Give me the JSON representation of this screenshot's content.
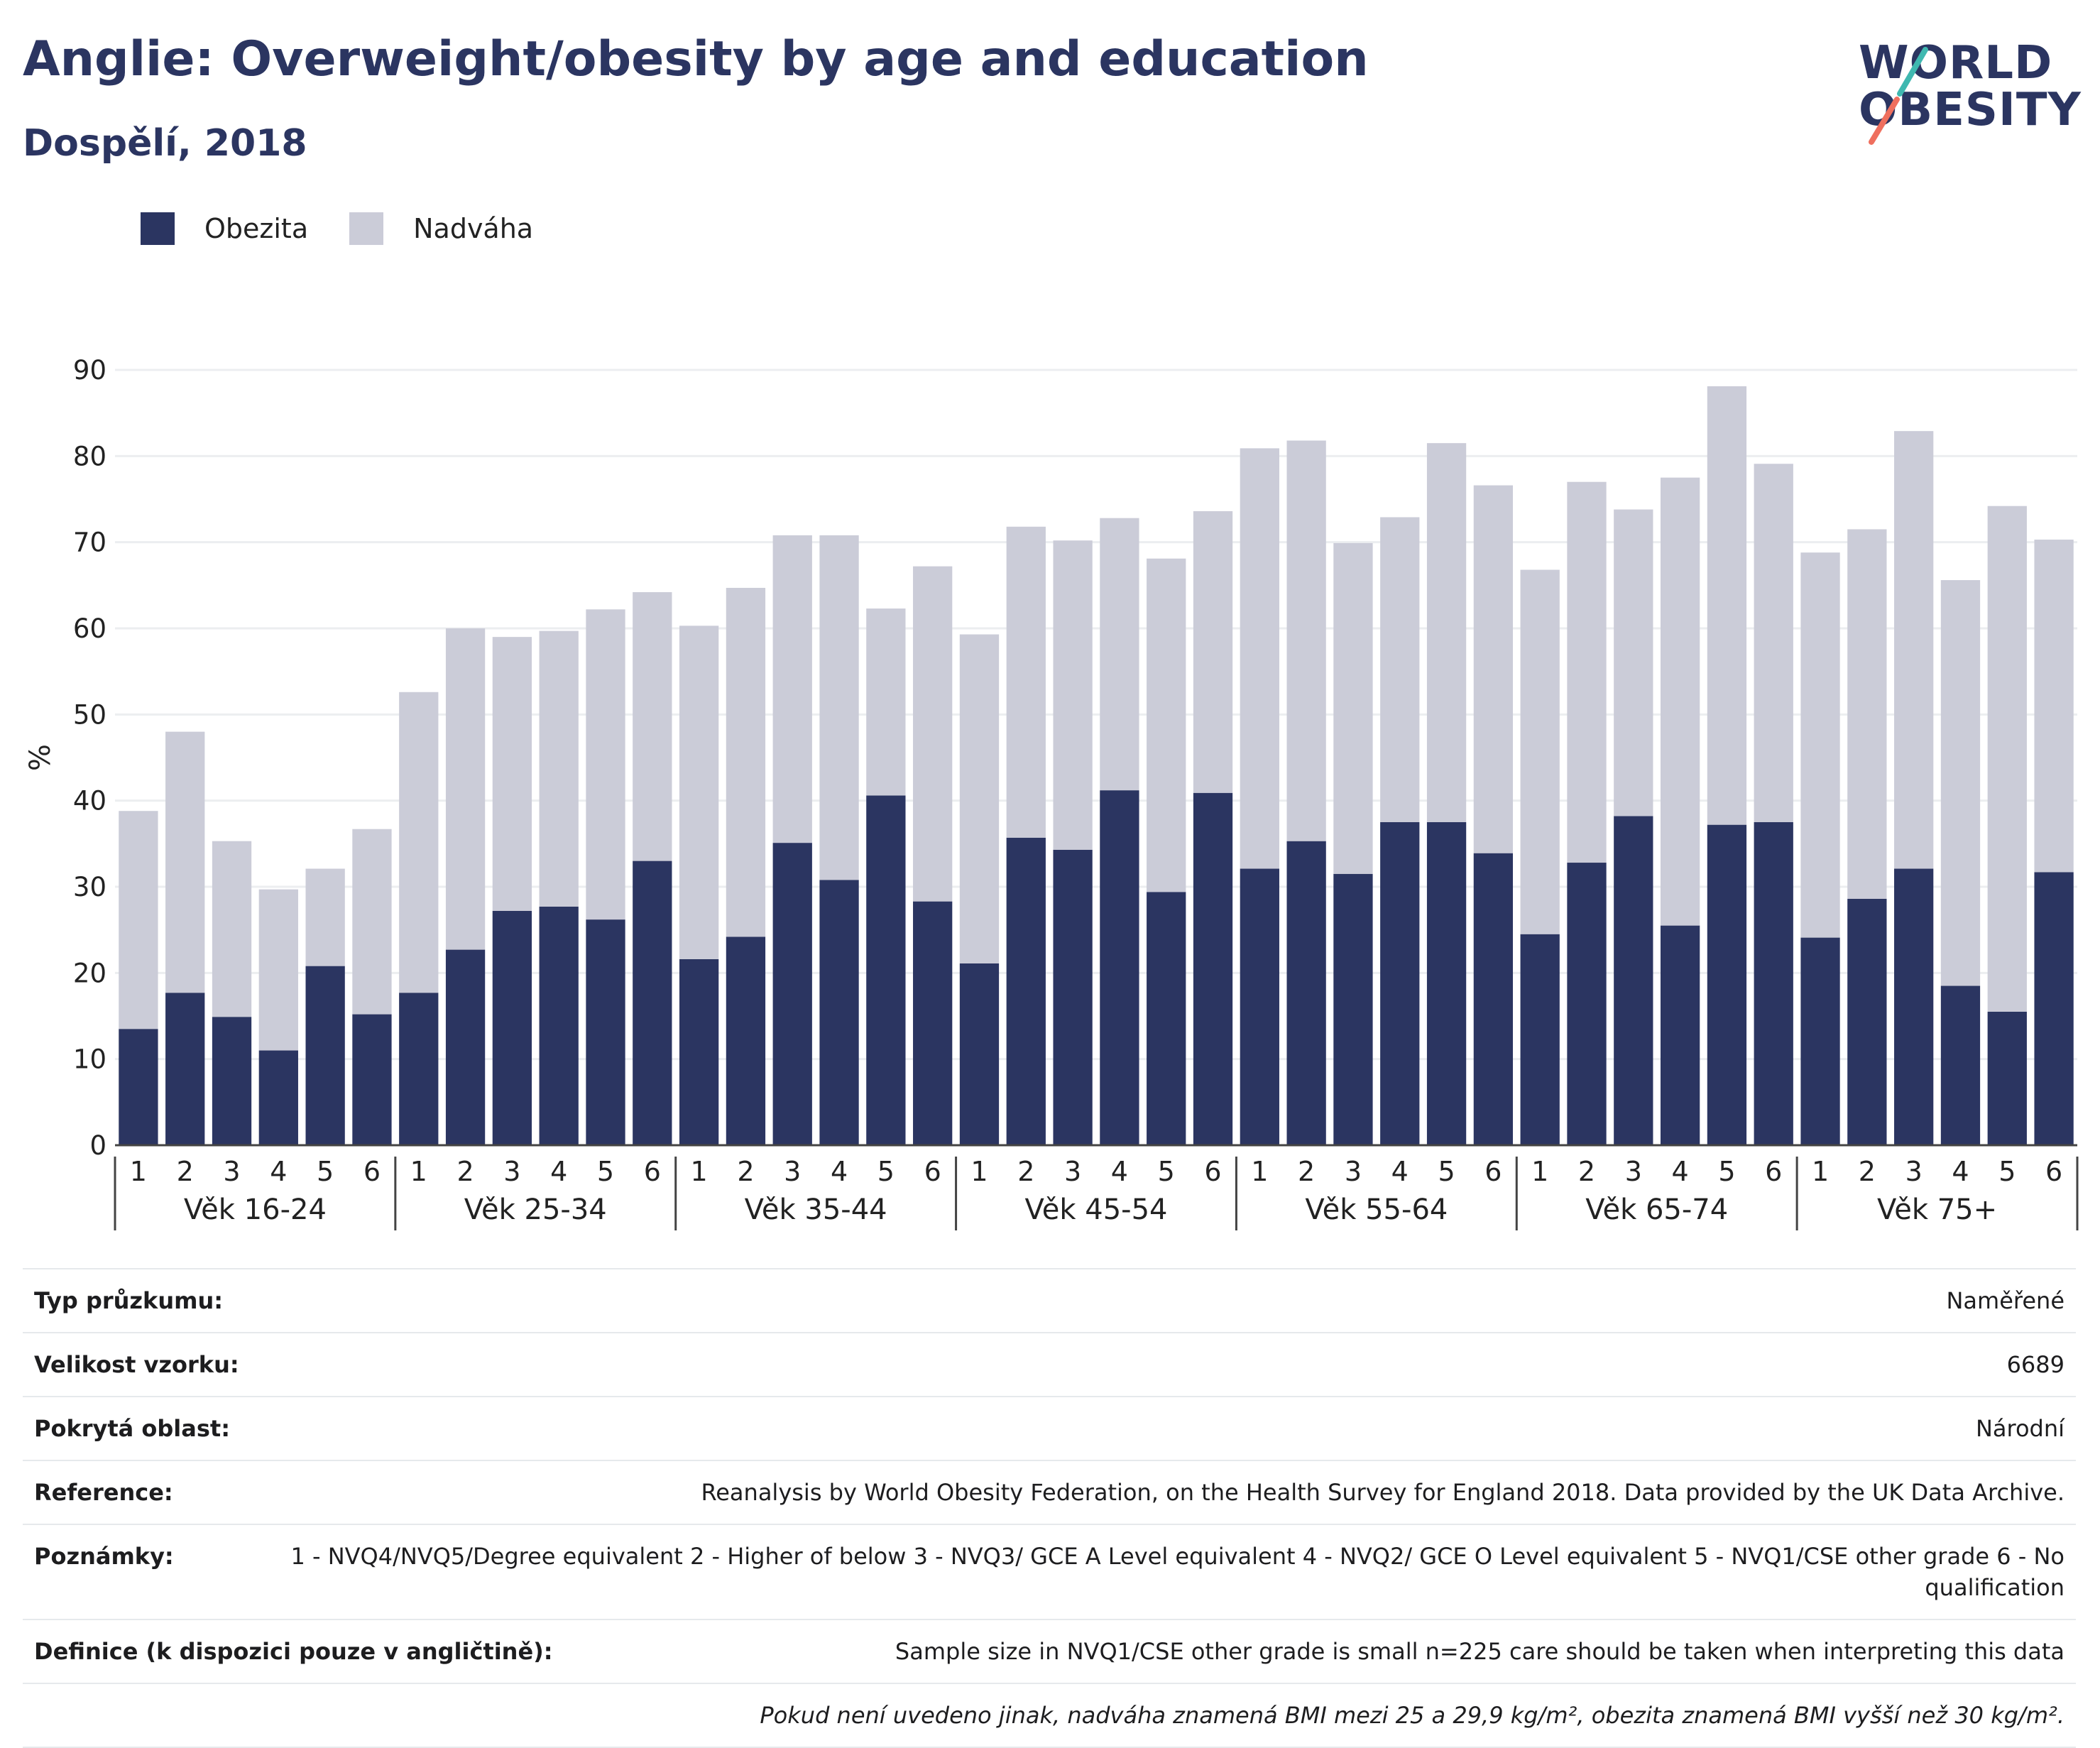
{
  "header": {
    "title": "Anglie: Overweight/obesity by age and education",
    "subtitle": "Dospělí, 2018",
    "logo_line1": "WORLD",
    "logo_line2": "OBESITY"
  },
  "legend": {
    "obesity_label": "Obezita",
    "overweight_label": "Nadváha"
  },
  "colors": {
    "obesity": "#2b3561",
    "overweight": "#cbccd8",
    "grid": "#eceef0",
    "axis": "#444444",
    "logo_teal": "#3fb8b0",
    "logo_coral": "#ef6f5e"
  },
  "chart_data": {
    "type": "bar",
    "stacked": true,
    "ylabel": "%",
    "ylim": [
      0,
      90
    ],
    "yticks": [
      0,
      10,
      20,
      30,
      40,
      50,
      60,
      70,
      80,
      90
    ],
    "grid": true,
    "legend_position": "top-left",
    "groups": [
      {
        "label": "Věk 16-24",
        "categories": [
          "1",
          "2",
          "3",
          "4",
          "5",
          "6"
        ]
      },
      {
        "label": "Věk 25-34",
        "categories": [
          "1",
          "2",
          "3",
          "4",
          "5",
          "6"
        ]
      },
      {
        "label": "Věk 35-44",
        "categories": [
          "1",
          "2",
          "3",
          "4",
          "5",
          "6"
        ]
      },
      {
        "label": "Věk 45-54",
        "categories": [
          "1",
          "2",
          "3",
          "4",
          "5",
          "6"
        ]
      },
      {
        "label": "Věk 55-64",
        "categories": [
          "1",
          "2",
          "3",
          "4",
          "5",
          "6"
        ]
      },
      {
        "label": "Věk 65-74",
        "categories": [
          "1",
          "2",
          "3",
          "4",
          "5",
          "6"
        ]
      },
      {
        "label": "Věk 75+",
        "categories": [
          "1",
          "2",
          "3",
          "4",
          "5",
          "6"
        ]
      }
    ],
    "series": [
      {
        "name": "Obezita",
        "values": [
          13.5,
          17.7,
          14.9,
          11.0,
          20.8,
          15.2,
          17.7,
          22.7,
          27.2,
          27.7,
          26.2,
          33.0,
          21.6,
          24.2,
          35.1,
          30.8,
          40.6,
          28.3,
          21.1,
          35.7,
          34.3,
          41.2,
          29.4,
          40.9,
          32.1,
          35.3,
          31.5,
          37.5,
          37.5,
          33.9,
          24.5,
          32.8,
          38.2,
          25.5,
          37.2,
          37.5,
          24.1,
          28.6,
          32.1,
          18.5,
          15.5,
          31.7
        ]
      },
      {
        "name": "Nadváha",
        "values": [
          25.3,
          30.3,
          20.4,
          18.7,
          11.3,
          21.5,
          34.9,
          37.3,
          31.8,
          32.0,
          36.0,
          31.2,
          38.7,
          40.5,
          35.7,
          40.0,
          21.7,
          38.9,
          38.2,
          36.1,
          35.9,
          31.6,
          38.7,
          32.7,
          48.8,
          46.5,
          38.4,
          35.4,
          44.0,
          42.7,
          42.3,
          44.2,
          35.6,
          52.0,
          50.9,
          41.6,
          44.7,
          42.9,
          50.8,
          47.1,
          58.7,
          38.6
        ]
      }
    ]
  },
  "info_table": [
    {
      "key": "Typ průzkumu:",
      "value": "Naměřené"
    },
    {
      "key": "Velikost vzorku:",
      "value": "6689"
    },
    {
      "key": "Pokrytá oblast:",
      "value": "Národní"
    },
    {
      "key": "Reference:",
      "value": "Reanalysis by World Obesity Federation, on the Health Survey for England 2018. Data provided by the UK Data Archive."
    },
    {
      "key": "Poznámky:",
      "value": "1 - NVQ4/NVQ5/Degree equivalent 2 - Higher of below 3 - NVQ3/ GCE A Level equivalent 4 - NVQ2/ GCE O Level equivalent 5 - NVQ1/CSE other grade 6 - No qualification"
    },
    {
      "key": "Definice (k dispozici pouze v angličtině):",
      "value": "Sample size in NVQ1/CSE other grade is small n=225 care should be taken when interpreting this data"
    }
  ],
  "footnote": "Pokud není uvedeno jinak, nadváha znamená BMI mezi 25 a 29,9 kg/m², obezita znamená BMI vyšší než 30 kg/m²."
}
